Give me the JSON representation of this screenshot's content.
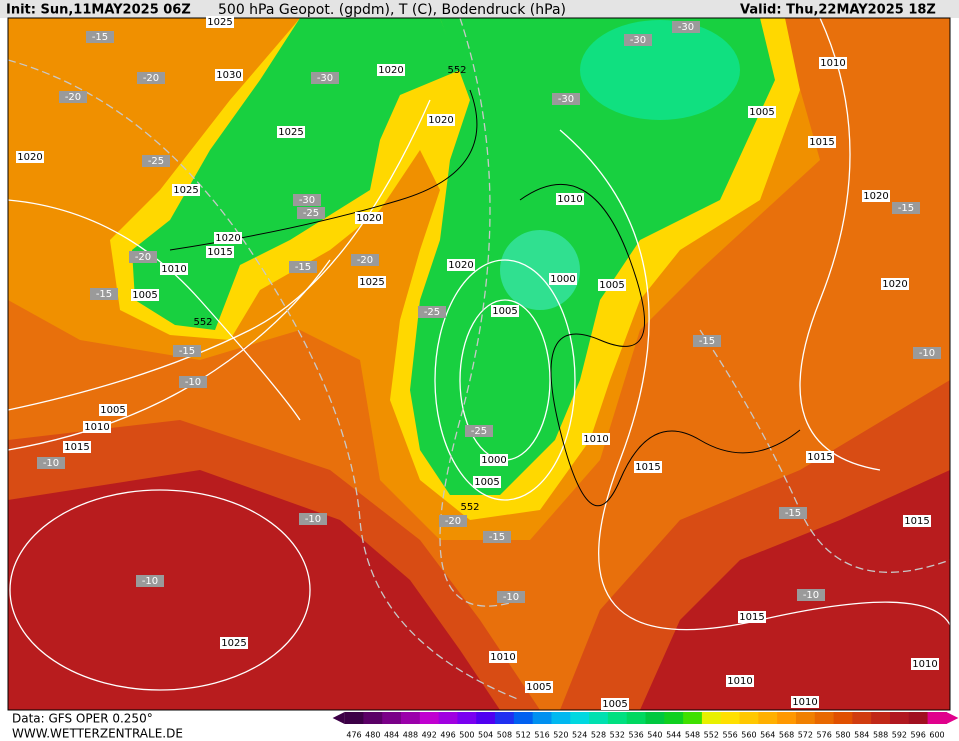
{
  "header": {
    "init": "Init: Sun,11MAY2025 06Z",
    "title": "500 hPa Geopot. (gpdm), T (C), Bodendruck (hPa)",
    "valid": "Valid: Thu,22MAY2025 18Z"
  },
  "footer": {
    "data": "Data: GFS OPER 0.250°",
    "site": "WWW.WETTERZENTRALE.DE"
  },
  "colorbar": {
    "levels": [
      476,
      480,
      484,
      488,
      492,
      496,
      500,
      504,
      508,
      512,
      516,
      520,
      524,
      528,
      532,
      536,
      540,
      544,
      548,
      552,
      556,
      560,
      564,
      568,
      572,
      576,
      580,
      584,
      588,
      592,
      596,
      600
    ],
    "colors": [
      "#3c0046",
      "#5a0066",
      "#7a0088",
      "#9a00aa",
      "#c000d0",
      "#a000e0",
      "#7a00f0",
      "#5000f0",
      "#2030f0",
      "#0060f0",
      "#0090f0",
      "#00b8f0",
      "#00d8e0",
      "#00e0b0",
      "#00e080",
      "#00d860",
      "#00c840",
      "#10d020",
      "#40e000",
      "#e8f000",
      "#ffe000",
      "#ffc800",
      "#ffb000",
      "#ff9800",
      "#f08000",
      "#e86800",
      "#e05000",
      "#d03c10",
      "#c02818",
      "#b01820",
      "#a01020",
      "#e0008c"
    ]
  },
  "map": {
    "pressure_labels": [
      "1025",
      "1030",
      "1020",
      "1025",
      "1025",
      "1020",
      "1015",
      "1010",
      "1005",
      "1020",
      "1020",
      "1020",
      "1020",
      "1025",
      "1010",
      "1000",
      "1005",
      "1005",
      "1000",
      "1005",
      "1005",
      "1015",
      "1010",
      "1020",
      "1020",
      "1010",
      "1015",
      "1015",
      "1015",
      "1005",
      "1010",
      "1015",
      "1025",
      "1015",
      "1010",
      "1005",
      "1005",
      "1010",
      "1010",
      "1010"
    ],
    "temperature_labels": [
      "-15",
      "-20",
      "-20",
      "-25",
      "-30",
      "-30",
      "-25",
      "-20",
      "-15",
      "-15",
      "-20",
      "-25",
      "-15",
      "-10",
      "-10",
      "-30",
      "-30",
      "-30",
      "-25",
      "-20",
      "-15",
      "-10",
      "-10",
      "-10",
      "-15",
      "-10",
      "-15",
      "-15",
      "-10"
    ],
    "height_labels": [
      "552",
      "552",
      "552"
    ]
  }
}
